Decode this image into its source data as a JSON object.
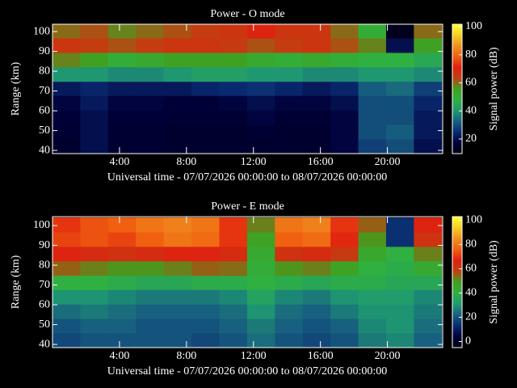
{
  "chart_data": [
    {
      "type": "heatmap",
      "title": "Power - O mode",
      "ylabel": "Range (km)",
      "xlabel": "Universal time - 07/07/2026 00:00:00 to 08/07/2026 00:00:00",
      "colorbar_label": "Signal power (dB)",
      "xlim": [
        0,
        23.3
      ],
      "xticks": [
        {
          "value": 4,
          "label": "4:00"
        },
        {
          "value": 8,
          "label": "8:00"
        },
        {
          "value": 12,
          "label": "12:00"
        },
        {
          "value": 16,
          "label": "16:00"
        },
        {
          "value": 20,
          "label": "20:00"
        }
      ],
      "ylim": [
        38.4,
        103.7
      ],
      "yticks": [
        40,
        50,
        60,
        70,
        80,
        90,
        100
      ],
      "clim": [
        9.6,
        101.7
      ],
      "cticks": [
        20,
        40,
        60,
        80,
        100
      ],
      "colorscale": [
        "#000010",
        "#00003a",
        "#0a2a70",
        "#17607f",
        "#1f9a70",
        "#30b040",
        "#40a020",
        "#c04010",
        "#e02010",
        "#f06010",
        "#f09020",
        "#f8d020",
        "#ffff30"
      ],
      "x": [
        0.83,
        2.49,
        4.15,
        5.81,
        7.47,
        9.13,
        10.79,
        12.45,
        14.11,
        15.77,
        17.43,
        19.09,
        20.75,
        22.41
      ],
      "y": [
        42.1,
        49.4,
        56.7,
        64.0,
        71.3,
        78.5,
        85.8,
        93.1,
        100.4
      ],
      "z": [
        [
          15,
          20,
          16,
          16,
          15,
          15,
          15,
          15,
          15,
          15,
          18,
          28,
          30,
          20
        ],
        [
          16,
          20,
          16,
          16,
          15,
          15,
          15,
          16,
          15,
          15,
          18,
          30,
          32,
          22
        ],
        [
          17,
          20,
          17,
          17,
          16,
          16,
          16,
          18,
          16,
          16,
          18,
          30,
          30,
          22
        ],
        [
          18,
          22,
          18,
          18,
          17,
          17,
          18,
          20,
          18,
          18,
          20,
          30,
          30,
          24
        ],
        [
          22,
          24,
          22,
          22,
          22,
          24,
          25,
          26,
          24,
          22,
          24,
          32,
          34,
          28
        ],
        [
          40,
          40,
          38,
          38,
          40,
          42,
          42,
          40,
          40,
          38,
          38,
          40,
          40,
          38
        ],
        [
          58,
          55,
          50,
          52,
          55,
          55,
          55,
          52,
          50,
          52,
          50,
          48,
          48,
          45
        ],
        [
          66,
          64,
          62,
          64,
          66,
          66,
          65,
          62,
          64,
          66,
          62,
          58,
          20,
          55
        ],
        [
          60,
          62,
          58,
          60,
          62,
          64,
          66,
          70,
          66,
          66,
          60,
          50,
          12,
          60
        ]
      ]
    },
    {
      "type": "heatmap",
      "title": "Power - E mode",
      "ylabel": "Range (km)",
      "xlabel": "Universal time - 07/07/2026 00:00:00 to 08/07/2026 00:00:00",
      "colorbar_label": "Signal power (dB)",
      "xlim": [
        0,
        23.3
      ],
      "xticks": [
        {
          "value": 4,
          "label": "4:00"
        },
        {
          "value": 8,
          "label": "8:00"
        },
        {
          "value": 12,
          "label": "12:00"
        },
        {
          "value": 16,
          "label": "16:00"
        },
        {
          "value": 20,
          "label": "20:00"
        }
      ],
      "ylim": [
        38.4,
        104.5
      ],
      "yticks": [
        40,
        50,
        60,
        70,
        80,
        90,
        100
      ],
      "clim": [
        -5,
        103
      ],
      "cticks": [
        0,
        20,
        40,
        60,
        80,
        100
      ],
      "colorscale": [
        "#000010",
        "#00003a",
        "#0a2a70",
        "#17607f",
        "#1f9a70",
        "#30b040",
        "#40a020",
        "#c04010",
        "#e02010",
        "#f06010",
        "#f09020",
        "#f8d020",
        "#ffff30"
      ],
      "x": [
        0.83,
        2.49,
        4.15,
        5.81,
        7.47,
        9.13,
        10.79,
        12.45,
        14.11,
        15.77,
        17.43,
        19.09,
        20.75,
        22.41
      ],
      "y": [
        42.1,
        49.4,
        56.7,
        64.0,
        71.3,
        78.5,
        85.8,
        93.1,
        100.4
      ],
      "z": [
        [
          18,
          20,
          20,
          20,
          20,
          18,
          20,
          24,
          20,
          18,
          20,
          26,
          28,
          22
        ],
        [
          20,
          22,
          22,
          20,
          20,
          20,
          22,
          26,
          22,
          20,
          22,
          28,
          30,
          24
        ],
        [
          24,
          26,
          24,
          22,
          22,
          22,
          24,
          30,
          24,
          22,
          26,
          30,
          30,
          26
        ],
        [
          30,
          30,
          28,
          26,
          26,
          26,
          28,
          34,
          28,
          26,
          30,
          32,
          32,
          28
        ],
        [
          40,
          40,
          38,
          36,
          36,
          38,
          38,
          40,
          38,
          36,
          38,
          38,
          36,
          36
        ],
        [
          55,
          52,
          50,
          50,
          52,
          55,
          54,
          42,
          50,
          52,
          48,
          40,
          38,
          44
        ],
        [
          66,
          64,
          62,
          64,
          66,
          66,
          64,
          44,
          62,
          64,
          60,
          45,
          40,
          52
        ],
        [
          72,
          74,
          72,
          76,
          80,
          78,
          70,
          48,
          76,
          78,
          68,
          50,
          14,
          62
        ],
        [
          70,
          74,
          76,
          80,
          82,
          80,
          70,
          52,
          80,
          82,
          70,
          55,
          14,
          66
        ]
      ]
    }
  ]
}
